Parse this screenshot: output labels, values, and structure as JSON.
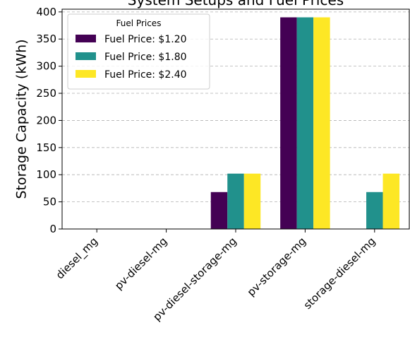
{
  "chart_data": {
    "type": "bar",
    "title": "System Setups and Fuel Prices",
    "xlabel": "",
    "ylabel": "Storage Capacity (kWh)",
    "ylim": [
      0,
      405
    ],
    "yticks": [
      0,
      50,
      100,
      150,
      200,
      250,
      300,
      350,
      400
    ],
    "grid": "y-dashed",
    "legend": {
      "title": "Fuel Prices",
      "placement": "top-left"
    },
    "categories": [
      "diesel_mg",
      "pv-diesel-mg",
      "pv-diesel-storage-mg",
      "pv-storage-mg",
      "storage-diesel-mg"
    ],
    "series": [
      {
        "name": "Fuel Price: $1.20",
        "color": "#440154",
        "values": [
          0,
          0,
          68,
          390,
          0
        ]
      },
      {
        "name": "Fuel Price: $1.80",
        "color": "#21918c",
        "values": [
          0,
          0,
          102,
          390,
          68
        ]
      },
      {
        "name": "Fuel Price: $2.40",
        "color": "#fde725",
        "values": [
          0,
          0,
          102,
          390,
          102
        ]
      }
    ]
  }
}
